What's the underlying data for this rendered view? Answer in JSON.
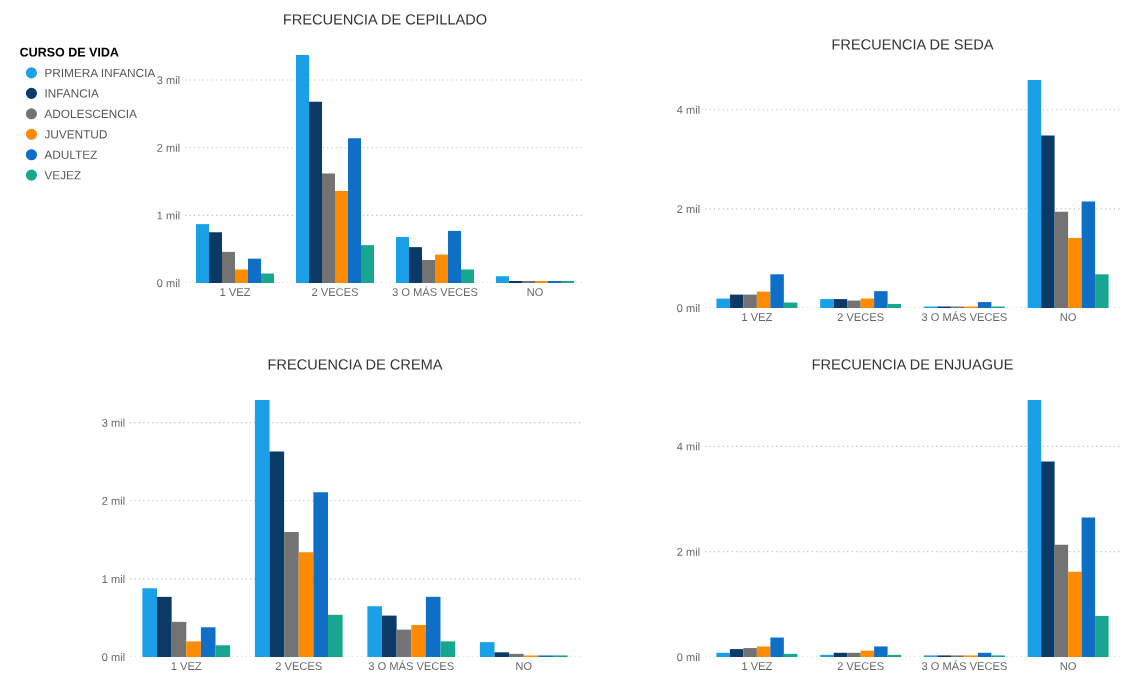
{
  "chart_data": [
    {
      "type": "bar",
      "title": "FRECUENCIA DE CEPILLADO",
      "legend_title": "CURSO DE VIDA",
      "legend": "left",
      "grid": "y",
      "categories": [
        "1 VEZ",
        "2 VECES",
        "3 O MÁS VECES",
        "NO"
      ],
      "ylim": [
        0,
        3.37
      ],
      "yticks": [
        {
          "value": 0,
          "label": "0 mil"
        },
        {
          "value": 1,
          "label": "1 mil"
        },
        {
          "value": 2,
          "label": "2 mil"
        },
        {
          "value": 3,
          "label": "3 mil"
        }
      ],
      "series": [
        {
          "name": "PRIMERA INFANCIA",
          "color": "#1aa0e8",
          "values": [
            0.87,
            3.37,
            0.68,
            0.1
          ]
        },
        {
          "name": "INFANCIA",
          "color": "#0b3a66",
          "values": [
            0.75,
            2.68,
            0.53,
            0.03
          ]
        },
        {
          "name": "ADOLESCENCIA",
          "color": "#737373",
          "values": [
            0.46,
            1.62,
            0.34,
            0.03
          ]
        },
        {
          "name": "JUVENTUD",
          "color": "#ff8c00",
          "values": [
            0.2,
            1.36,
            0.42,
            0.03
          ]
        },
        {
          "name": "ADULTEZ",
          "color": "#0f6fc6",
          "values": [
            0.36,
            2.14,
            0.77,
            0.03
          ]
        },
        {
          "name": "VEJEZ",
          "color": "#17a78e",
          "values": [
            0.14,
            0.56,
            0.2,
            0.03
          ]
        }
      ]
    },
    {
      "type": "bar",
      "title": "FRECUENCIA DE SEDA",
      "grid": "y",
      "categories": [
        "1 VEZ",
        "2 VECES",
        "3 O MÁS VECES",
        "NO"
      ],
      "ylim": [
        0,
        4.6
      ],
      "yticks": [
        {
          "value": 0,
          "label": "0 mil"
        },
        {
          "value": 2,
          "label": "2 mil"
        },
        {
          "value": 4,
          "label": "4 mil"
        }
      ],
      "series": [
        {
          "color": "#1aa0e8",
          "values": [
            0.19,
            0.18,
            0.03,
            4.6
          ]
        },
        {
          "color": "#0b3a66",
          "values": [
            0.27,
            0.18,
            0.03,
            3.48
          ]
        },
        {
          "color": "#737373",
          "values": [
            0.27,
            0.15,
            0.03,
            1.94
          ]
        },
        {
          "color": "#ff8c00",
          "values": [
            0.33,
            0.19,
            0.03,
            1.41
          ]
        },
        {
          "color": "#0f6fc6",
          "values": [
            0.68,
            0.34,
            0.12,
            2.15
          ]
        },
        {
          "color": "#17a78e",
          "values": [
            0.11,
            0.08,
            0.03,
            0.68
          ]
        }
      ]
    },
    {
      "type": "bar",
      "title": "FRECUENCIA DE CREMA",
      "grid": "y",
      "categories": [
        "1 VEZ",
        "2 VECES",
        "3 O MÁS VECES",
        "NO"
      ],
      "ylim": [
        0,
        3.29
      ],
      "yticks": [
        {
          "value": 0,
          "label": "0 mil"
        },
        {
          "value": 1,
          "label": "1 mil"
        },
        {
          "value": 2,
          "label": "2 mil"
        },
        {
          "value": 3,
          "label": "3 mil"
        }
      ],
      "series": [
        {
          "color": "#1aa0e8",
          "values": [
            0.88,
            3.29,
            0.65,
            0.19
          ]
        },
        {
          "color": "#0b3a66",
          "values": [
            0.77,
            2.63,
            0.53,
            0.06
          ]
        },
        {
          "color": "#737373",
          "values": [
            0.45,
            1.6,
            0.35,
            0.04
          ]
        },
        {
          "color": "#ff8c00",
          "values": [
            0.2,
            1.34,
            0.41,
            0.02
          ]
        },
        {
          "color": "#0f6fc6",
          "values": [
            0.38,
            2.11,
            0.77,
            0.02
          ]
        },
        {
          "color": "#17a78e",
          "values": [
            0.15,
            0.54,
            0.2,
            0.02
          ]
        }
      ]
    },
    {
      "type": "bar",
      "title": "FRECUENCIA DE ENJUAGUE",
      "grid": "y",
      "categories": [
        "1 VEZ",
        "2 VECES",
        "3 O MÁS VECES",
        "NO"
      ],
      "ylim": [
        0,
        4.88
      ],
      "yticks": [
        {
          "value": 0,
          "label": "0 mil"
        },
        {
          "value": 2,
          "label": "2 mil"
        },
        {
          "value": 4,
          "label": "4 mil"
        }
      ],
      "series": [
        {
          "color": "#1aa0e8",
          "values": [
            0.08,
            0.04,
            0.03,
            4.88
          ]
        },
        {
          "color": "#0b3a66",
          "values": [
            0.15,
            0.08,
            0.03,
            3.71
          ]
        },
        {
          "color": "#737373",
          "values": [
            0.17,
            0.08,
            0.03,
            2.13
          ]
        },
        {
          "color": "#ff8c00",
          "values": [
            0.2,
            0.12,
            0.03,
            1.62
          ]
        },
        {
          "color": "#0f6fc6",
          "values": [
            0.37,
            0.2,
            0.08,
            2.65
          ]
        },
        {
          "color": "#17a78e",
          "values": [
            0.06,
            0.04,
            0.03,
            0.78
          ]
        }
      ]
    }
  ]
}
